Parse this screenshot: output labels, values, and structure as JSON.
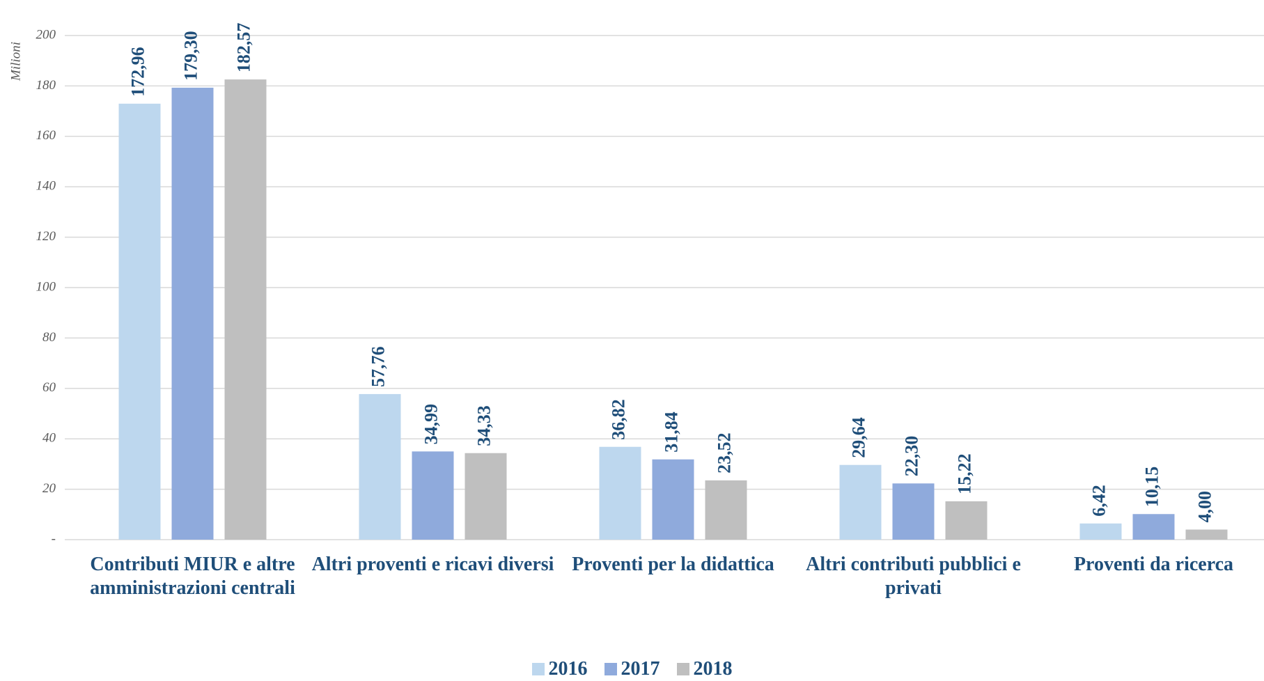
{
  "chart_data": {
    "type": "bar",
    "y_label": "Milioni",
    "categories": [
      "Contributi MIUR e altre amministrazioni centrali",
      "Altri proventi e ricavi diversi",
      "Proventi per la didattica",
      "Altri contributi pubblici e privati",
      "Proventi da ricerca"
    ],
    "series": [
      {
        "name": "2016",
        "color": "#bdd7ee",
        "values": [
          172.96,
          57.76,
          36.82,
          29.64,
          6.42
        ],
        "value_labels": [
          "172,96",
          "57,76",
          "36,82",
          "29,64",
          "6,42"
        ]
      },
      {
        "name": "2017",
        "color": "#8faadc",
        "values": [
          179.3,
          34.99,
          31.84,
          22.3,
          10.15
        ],
        "value_labels": [
          "179,30",
          "34,99",
          "31,84",
          "22,30",
          "10,15"
        ]
      },
      {
        "name": "2018",
        "color": "#bfbfbf",
        "values": [
          182.57,
          34.33,
          23.52,
          15.22,
          4.0
        ],
        "value_labels": [
          "182,57",
          "34,33",
          "23,52",
          "15,22",
          "4,00"
        ]
      }
    ],
    "ylim": [
      0,
      200
    ],
    "yticks": [
      {
        "value": 0,
        "label": "-"
      },
      20,
      40,
      60,
      80,
      100,
      120,
      140,
      160,
      180,
      200
    ],
    "grid": true,
    "legend": "bottom"
  }
}
